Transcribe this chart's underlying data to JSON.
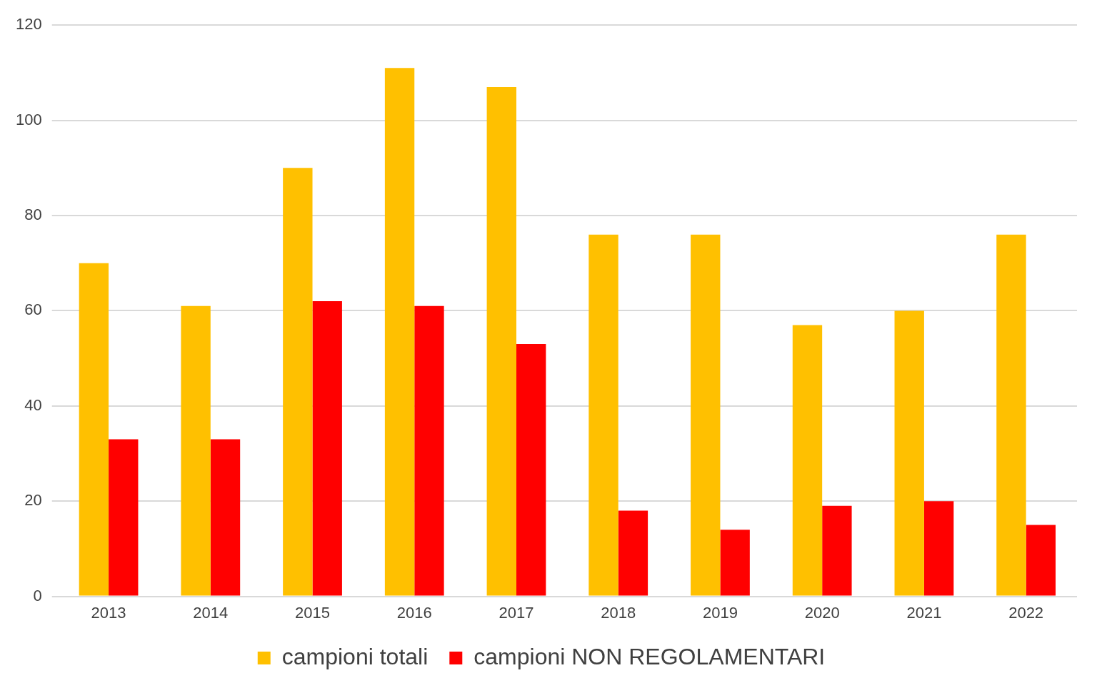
{
  "chart_data": {
    "type": "bar",
    "categories": [
      "2013",
      "2014",
      "2015",
      "2016",
      "2017",
      "2018",
      "2019",
      "2020",
      "2021",
      "2022"
    ],
    "series": [
      {
        "name": "campioni totali",
        "color": "#ffc000",
        "values": [
          70,
          61,
          90,
          111,
          107,
          76,
          76,
          57,
          60,
          76
        ]
      },
      {
        "name": "campioni NON REGOLAMENTARI",
        "color": "#ff0000",
        "values": [
          33,
          33,
          62,
          61,
          53,
          18,
          14,
          19,
          20,
          15
        ]
      }
    ],
    "ylim": [
      0,
      120
    ],
    "yticks": [
      0,
      20,
      40,
      60,
      80,
      100,
      120
    ],
    "grid": "y",
    "legend": "bottom"
  }
}
